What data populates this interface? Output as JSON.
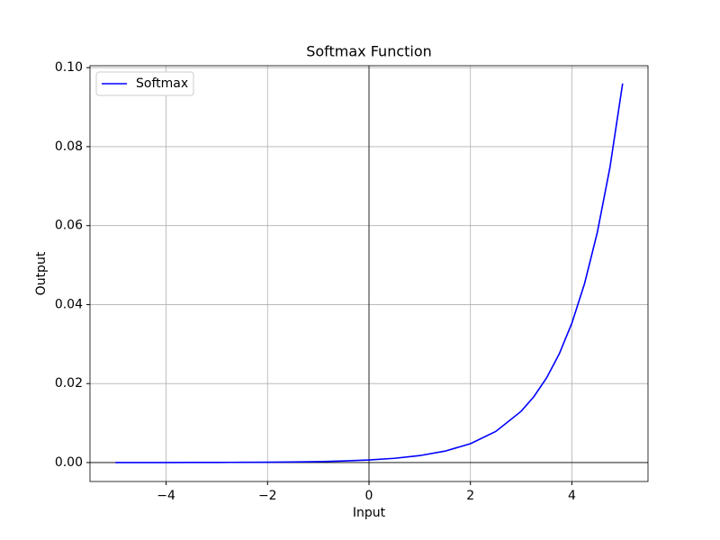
{
  "chart_data": {
    "type": "line",
    "title": "Softmax Function",
    "x_label": "Input",
    "y_label": "Output",
    "x": [
      -5,
      -4.5,
      -4,
      -3.5,
      -3,
      -2.5,
      -2,
      -1.5,
      -1,
      -0.5,
      0,
      0.5,
      1,
      1.5,
      2,
      2.5,
      3,
      3.25,
      3.5,
      3.75,
      4,
      4.25,
      4.5,
      4.75,
      5
    ],
    "series": [
      {
        "name": "Softmax",
        "color": "#0000ff",
        "values": [
          4e-06,
          7e-06,
          1.2e-05,
          2e-05,
          3.2e-05,
          5.3e-05,
          8.8e-05,
          0.000144,
          0.000238,
          0.000392,
          0.000647,
          0.001066,
          0.001758,
          0.002899,
          0.00478,
          0.00788,
          0.01299,
          0.01668,
          0.02142,
          0.0275,
          0.03532,
          0.04535,
          0.05823,
          0.07476,
          0.096
        ]
      }
    ],
    "xlim": [
      -5.5,
      5.5
    ],
    "xticks": [
      {
        "value": -4,
        "label": "−4"
      },
      {
        "value": -2,
        "label": "−2"
      },
      0,
      2,
      4
    ],
    "ylim": [
      -0.0048,
      0.1005
    ],
    "yticks": [
      {
        "value": 0,
        "label": "0.00"
      },
      {
        "value": 0.02,
        "label": "0.02"
      },
      {
        "value": 0.04,
        "label": "0.04"
      },
      {
        "value": 0.06,
        "label": "0.06"
      },
      {
        "value": 0.08,
        "label": "0.08"
      },
      {
        "value": 0.1,
        "label": "0.10"
      }
    ],
    "grid": true,
    "legend": "upper left"
  }
}
